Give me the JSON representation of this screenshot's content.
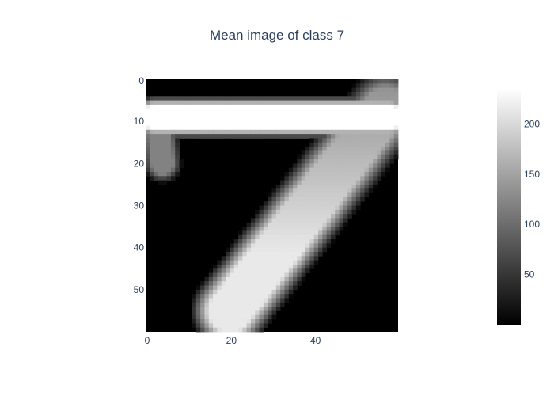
{
  "chart_data": {
    "type": "heatmap",
    "title": "Mean image of class 7",
    "xlabel": "",
    "ylabel": "",
    "width": 60,
    "height": 60,
    "x_range": [
      0,
      60
    ],
    "y_range": [
      0,
      60
    ],
    "y_reversed": true,
    "x_ticks": [
      0,
      20,
      40
    ],
    "y_ticks": [
      0,
      10,
      20,
      30,
      40,
      50
    ],
    "colorscale": "greys",
    "z_range": [
      0,
      235
    ],
    "colorbar_ticks": [
      50,
      100,
      150,
      200
    ],
    "intensity_peak": 235,
    "grid": false,
    "strokes": [
      {
        "name": "top-bar",
        "from": [
          2,
          9
        ],
        "to": [
          58,
          9
        ],
        "width": 5.5,
        "value": 235
      },
      {
        "name": "diagonal",
        "from": [
          57,
          7
        ],
        "to": [
          20,
          55
        ],
        "width": 10,
        "value": 195
      },
      {
        "name": "left-tick",
        "from": [
          3,
          11
        ],
        "to": [
          4,
          20
        ],
        "width": 5,
        "value": 120
      }
    ]
  }
}
